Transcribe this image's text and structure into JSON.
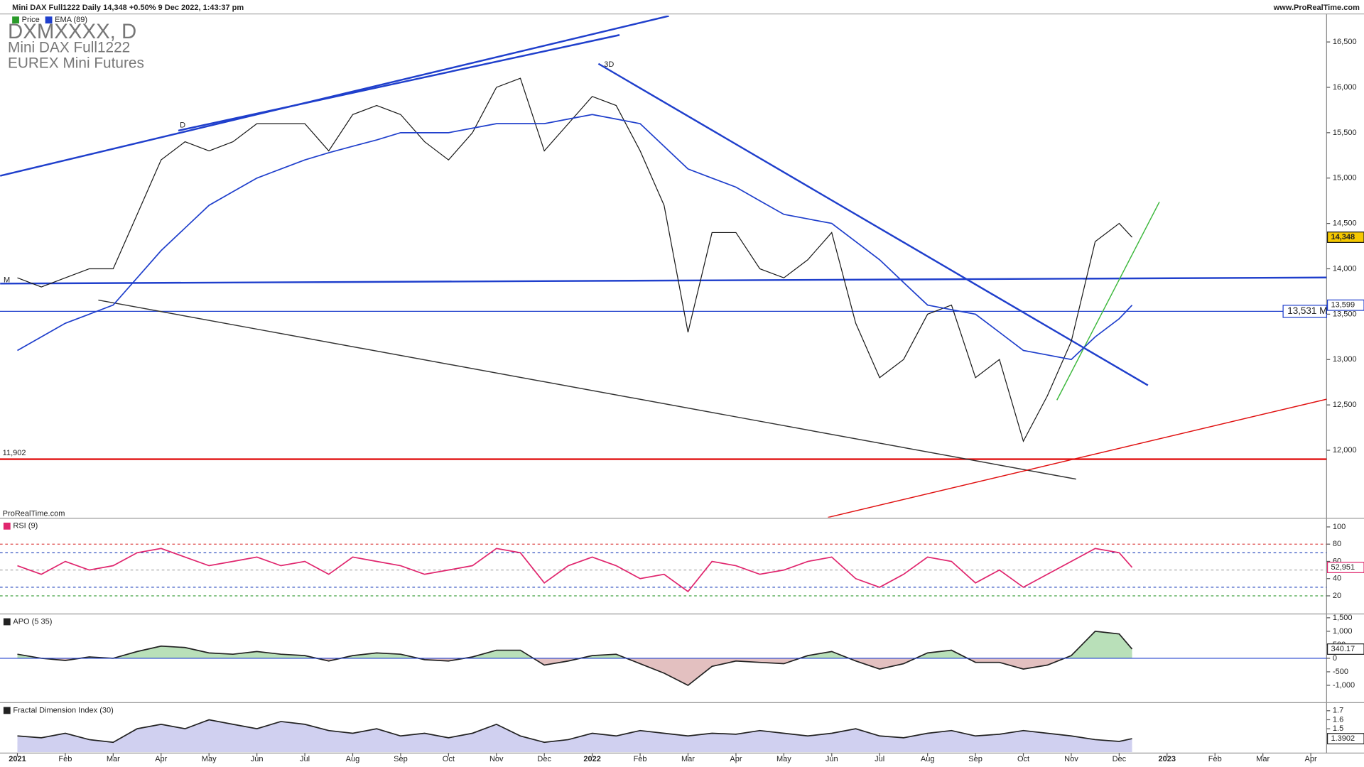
{
  "header": {
    "title": "Mini DAX Full1222 Daily 14,348 +0.50% 9 Dec 2022, 1:43:37 pm",
    "site": "www.ProRealTime.com",
    "watermark": [
      "DXMXXXX, D",
      "Mini DAX Full1222",
      "EUREX Mini Futures"
    ],
    "footer": "ProRealTime.com"
  },
  "chart_data": [
    {
      "type": "line",
      "xlim": [
        -0.363,
        27.33
      ],
      "ylim": [
        11260,
        16790
      ],
      "yticks": [
        {
          "value": 12000,
          "label": "12,000"
        },
        {
          "value": 12500,
          "label": "12,500"
        },
        {
          "value": 13000,
          "label": "13,000"
        },
        {
          "value": 13500,
          "label": "13,500"
        },
        {
          "value": 14000,
          "label": "14,000"
        },
        {
          "value": 14500,
          "label": "14,500"
        },
        {
          "value": 15000,
          "label": "15,000"
        },
        {
          "value": 15500,
          "label": "15,500"
        },
        {
          "value": 16000,
          "label": "16,000"
        },
        {
          "value": 16500,
          "label": "16,500"
        }
      ],
      "x": [
        0,
        0.5,
        1,
        1.5,
        2,
        2.5,
        3,
        3.5,
        4,
        4.5,
        5,
        5.5,
        6,
        6.5,
        7,
        7.5,
        8,
        8.5,
        9,
        9.5,
        10,
        10.5,
        11,
        11.5,
        12,
        12.5,
        13,
        13.5,
        14,
        14.5,
        15,
        15.5,
        16,
        16.5,
        17,
        17.5,
        18,
        18.5,
        19,
        19.5,
        20,
        20.5,
        21,
        21.5,
        22,
        22.5,
        23,
        23.27
      ],
      "series": [
        {
          "name": "Price",
          "color": "#1a1a1a",
          "last_label": "14,348",
          "values": [
            13900,
            13800,
            13900,
            14000,
            14000,
            14600,
            15200,
            15400,
            15300,
            15400,
            15600,
            15600,
            15600,
            15300,
            15700,
            15800,
            15700,
            15400,
            15200,
            15500,
            16000,
            16100,
            15300,
            15600,
            15900,
            15800,
            15300,
            14700,
            13300,
            14400,
            14400,
            14000,
            13900,
            14100,
            14400,
            13400,
            12800,
            13000,
            13500,
            13600,
            12800,
            13000,
            12100,
            12600,
            13200,
            14300,
            14500,
            14348
          ]
        },
        {
          "name": "EMA (89)",
          "color": "#1f3fcc",
          "last_label": "13,599",
          "values": [
            13100,
            13250,
            13400,
            13500,
            13600,
            13900,
            14200,
            14450,
            14700,
            14850,
            15000,
            15100,
            15200,
            15280,
            15350,
            15420,
            15500,
            15500,
            15500,
            15550,
            15600,
            15600,
            15600,
            15650,
            15700,
            15650,
            15600,
            15350,
            15100,
            15000,
            14900,
            14750,
            14600,
            14550,
            14500,
            14300,
            14100,
            13850,
            13600,
            13550,
            13500,
            13300,
            13100,
            13050,
            13000,
            13250,
            13450,
            13599
          ]
        }
      ],
      "hlines": [
        {
          "value": 13531,
          "label": "13,531 M",
          "color": "#1f3fcc"
        },
        {
          "value": 11902,
          "label": "11,902",
          "color": "#e01010"
        }
      ],
      "trendlines": [
        {
          "color": "#1f3fcc",
          "points": [
            [
              -0.36,
              15025
            ],
            [
              13.6,
              16787
            ]
          ]
        },
        {
          "color": "#1f3fcc",
          "points": [
            [
              3.36,
              15523
            ],
            [
              12.57,
              16577
            ]
          ]
        },
        {
          "color": "#1f3fcc",
          "points": [
            [
              12.13,
              16260
            ],
            [
              23.6,
              12716
            ]
          ]
        },
        {
          "color": "#1f3fcc",
          "points": [
            [
              -0.36,
              13837
            ],
            [
              27.33,
              13904
            ]
          ]
        },
        {
          "color": "#333333",
          "points": [
            [
              1.69,
              13655
            ],
            [
              22.1,
              11682
            ]
          ]
        },
        {
          "color": "#e01010",
          "points": [
            [
              16.92,
              11260
            ],
            [
              27.33,
              12563
            ]
          ]
        },
        {
          "color": "#3db83d",
          "points": [
            [
              21.7,
              12553
            ],
            [
              23.84,
              14737
            ]
          ]
        }
      ],
      "annotations": [
        {
          "text": "D",
          "x": 3.45,
          "y": 15580
        },
        {
          "text": "3D",
          "x": 12.35,
          "y": 16250
        },
        {
          "text": "M",
          "x": -0.22,
          "y": 13875
        }
      ]
    },
    {
      "type": "line",
      "xlim": [
        -0.363,
        27.33
      ],
      "ylim": [
        0,
        109
      ],
      "yticks": [
        100,
        80,
        60,
        40,
        20
      ],
      "x": [
        0,
        0.5,
        1,
        1.5,
        2,
        2.5,
        3,
        3.5,
        4,
        4.5,
        5,
        5.5,
        6,
        6.5,
        7,
        7.5,
        8,
        8.5,
        9,
        9.5,
        10,
        10.5,
        11,
        11.5,
        12,
        12.5,
        13,
        13.5,
        14,
        14.5,
        15,
        15.5,
        16,
        16.5,
        17,
        17.5,
        18,
        18.5,
        19,
        19.5,
        20,
        20.5,
        21,
        21.5,
        22,
        22.5,
        23,
        23.27
      ],
      "levels": [
        {
          "value": 80,
          "color": "#e05050"
        },
        {
          "value": 70,
          "color": "#3050c0"
        },
        {
          "value": 50,
          "color": "#aaaaaa"
        },
        {
          "value": 30,
          "color": "#3050c0"
        },
        {
          "value": 20,
          "color": "#40a040"
        }
      ],
      "series": [
        {
          "name": "RSI (9)",
          "color": "#e0266e",
          "last_label": "52,951",
          "values": [
            55,
            45,
            60,
            50,
            55,
            70,
            75,
            65,
            55,
            60,
            65,
            55,
            60,
            45,
            65,
            60,
            55,
            45,
            50,
            55,
            75,
            70,
            35,
            55,
            65,
            55,
            40,
            45,
            25,
            60,
            55,
            45,
            50,
            60,
            65,
            40,
            30,
            45,
            65,
            60,
            35,
            50,
            30,
            45,
            60,
            75,
            70,
            52.951
          ]
        }
      ]
    },
    {
      "type": "area",
      "xlim": [
        -0.363,
        27.33
      ],
      "ylim": [
        -1610,
        1610
      ],
      "yticks": [
        {
          "value": 1500,
          "label": "1,500"
        },
        {
          "value": 1000,
          "label": "1,000"
        },
        500,
        0,
        -500,
        {
          "value": -1000,
          "label": "-1,000"
        }
      ],
      "x": [
        0,
        0.5,
        1,
        1.5,
        2,
        2.5,
        3,
        3.5,
        4,
        4.5,
        5,
        5.5,
        6,
        6.5,
        7,
        7.5,
        8,
        8.5,
        9,
        9.5,
        10,
        10.5,
        11,
        11.5,
        12,
        12.5,
        13,
        13.5,
        14,
        14.5,
        15,
        15.5,
        16,
        16.5,
        17,
        17.5,
        18,
        18.5,
        19,
        19.5,
        20,
        20.5,
        21,
        21.5,
        22,
        22.5,
        23,
        23.27
      ],
      "baseline_color": "#1f3fcc",
      "pos_fill": "#a8d8a8",
      "neg_fill": "#dcb0b0",
      "series": [
        {
          "name": "APO (5 35)",
          "color": "#222222",
          "last_label": "340.17",
          "values": [
            150,
            0,
            -80,
            50,
            0,
            250,
            450,
            400,
            200,
            150,
            250,
            150,
            100,
            -100,
            100,
            200,
            150,
            -50,
            -100,
            50,
            300,
            300,
            -250,
            -100,
            100,
            150,
            -200,
            -550,
            -1000,
            -300,
            -100,
            -150,
            -200,
            100,
            250,
            -100,
            -400,
            -200,
            200,
            300,
            -150,
            -150,
            -400,
            -250,
            100,
            1000,
            900,
            340.17
          ]
        }
      ]
    },
    {
      "type": "area",
      "xlim": [
        -0.363,
        27.33
      ],
      "ylim": [
        1.24,
        1.78
      ],
      "yticks": [
        1.7,
        1.6,
        1.5
      ],
      "x": [
        0,
        0.5,
        1,
        1.5,
        2,
        2.5,
        3,
        3.5,
        4,
        4.5,
        5,
        5.5,
        6,
        6.5,
        7,
        7.5,
        8,
        8.5,
        9,
        9.5,
        10,
        10.5,
        11,
        11.5,
        12,
        12.5,
        13,
        13.5,
        14,
        14.5,
        15,
        15.5,
        16,
        16.5,
        17,
        17.5,
        18,
        18.5,
        19,
        19.5,
        20,
        20.5,
        21,
        21.5,
        22,
        22.5,
        23,
        23.27
      ],
      "fill": "#c4c4ec",
      "xticks": [
        {
          "value": 0,
          "label": "2021"
        },
        {
          "value": 1,
          "label": "Feb"
        },
        {
          "value": 2,
          "label": "Mar"
        },
        {
          "value": 3,
          "label": "Apr"
        },
        {
          "value": 4,
          "label": "May"
        },
        {
          "value": 5,
          "label": "Jun"
        },
        {
          "value": 6,
          "label": "Jul"
        },
        {
          "value": 7,
          "label": "Aug"
        },
        {
          "value": 8,
          "label": "Sep"
        },
        {
          "value": 9,
          "label": "Oct"
        },
        {
          "value": 10,
          "label": "Nov"
        },
        {
          "value": 11,
          "label": "Dec"
        },
        {
          "value": 12,
          "label": "2022"
        },
        {
          "value": 13,
          "label": "Feb"
        },
        {
          "value": 14,
          "label": "Mar"
        },
        {
          "value": 15,
          "label": "Apr"
        },
        {
          "value": 16,
          "label": "May"
        },
        {
          "value": 17,
          "label": "Jun"
        },
        {
          "value": 18,
          "label": "Jul"
        },
        {
          "value": 19,
          "label": "Aug"
        },
        {
          "value": 20,
          "label": "Sep"
        },
        {
          "value": 21,
          "label": "Oct"
        },
        {
          "value": 22,
          "label": "Nov"
        },
        {
          "value": 23,
          "label": "Dec"
        },
        {
          "value": 24,
          "label": "2023"
        },
        {
          "value": 25,
          "label": "Feb"
        },
        {
          "value": 26,
          "label": "Mar"
        },
        {
          "value": 27,
          "label": "Apr"
        }
      ],
      "series": [
        {
          "name": "Fractal Dimension Index (30)",
          "color": "#222222",
          "last_label": "1.3902",
          "values": [
            1.42,
            1.4,
            1.45,
            1.38,
            1.35,
            1.5,
            1.55,
            1.5,
            1.6,
            1.55,
            1.5,
            1.58,
            1.55,
            1.48,
            1.45,
            1.5,
            1.42,
            1.45,
            1.4,
            1.45,
            1.55,
            1.42,
            1.35,
            1.38,
            1.45,
            1.42,
            1.48,
            1.45,
            1.42,
            1.45,
            1.44,
            1.48,
            1.45,
            1.42,
            1.45,
            1.5,
            1.42,
            1.4,
            1.45,
            1.48,
            1.42,
            1.44,
            1.48,
            1.45,
            1.42,
            1.38,
            1.36,
            1.3902
          ]
        }
      ]
    }
  ]
}
